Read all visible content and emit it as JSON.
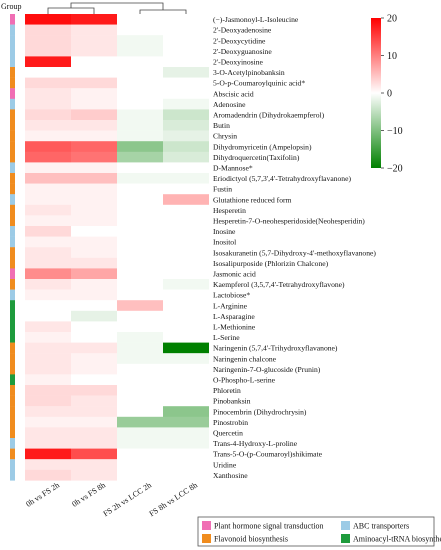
{
  "chart_data": {
    "type": "heatmap",
    "group_title": "Group",
    "columns": [
      "0h vs FS 2h",
      "0h vs FS 8h",
      "FS 2h vs LCC 2h",
      "FS 8h vs LCC 8h"
    ],
    "colorbar": {
      "min": -20,
      "max": 20,
      "ticks": [
        20,
        10,
        0,
        -10,
        -20
      ],
      "colors": [
        "#008000",
        "#ffffff",
        "#ff0000"
      ]
    },
    "legend": [
      {
        "name": "Plant hormone signal transduction",
        "color": "#f06eb4"
      },
      {
        "name": "ABC transporters",
        "color": "#9ccbe6"
      },
      {
        "name": "Flavonoid biosynthesis",
        "color": "#f08c1e"
      },
      {
        "name": "Aminoacyl-tRNA biosynthesis",
        "color": "#1e9b3c"
      }
    ],
    "rows": [
      {
        "label": "(−)-Jasmonoyl-L-Isoleucine",
        "group": 0,
        "values": [
          19,
          18,
          0,
          0
        ]
      },
      {
        "label": "2'-Deoxyadenosine",
        "group": 1,
        "values": [
          3,
          2,
          0,
          0
        ]
      },
      {
        "label": "2'-Deoxycytidine",
        "group": 1,
        "values": [
          3,
          2,
          -1,
          0
        ]
      },
      {
        "label": "2'-Deoxyguanosine",
        "group": 1,
        "values": [
          3,
          2,
          -1,
          0
        ]
      },
      {
        "label": "2'-Deoxyinosine",
        "group": 1,
        "values": [
          18,
          0,
          0,
          0
        ]
      },
      {
        "label": "3-O-Acetylpinobanksin",
        "group": 2,
        "values": [
          0,
          0,
          0,
          -2
        ]
      },
      {
        "label": "5-O-p-Coumaroylquinic acid*",
        "group": 2,
        "values": [
          3,
          3,
          0,
          0
        ]
      },
      {
        "label": "Abscisic  acid",
        "group": 0,
        "values": [
          2,
          1,
          0,
          0
        ]
      },
      {
        "label": "Adenosine",
        "group": 1,
        "values": [
          2,
          1,
          0,
          -1
        ]
      },
      {
        "label": "Aromadendrin (Dihydrokaempferol)",
        "group": 2,
        "values": [
          3,
          4,
          -1,
          -4
        ]
      },
      {
        "label": "Butin",
        "group": 2,
        "values": [
          2,
          2,
          -1,
          -3
        ]
      },
      {
        "label": "Chrysin",
        "group": 2,
        "values": [
          1,
          1,
          -1,
          -2
        ]
      },
      {
        "label": "Dihydromyricetin (Ampelopsin)",
        "group": 2,
        "values": [
          13,
          12,
          -9,
          -4
        ]
      },
      {
        "label": "Dihydroquercetin(Taxifolin)",
        "group": 2,
        "values": [
          12,
          11,
          -7,
          -3
        ]
      },
      {
        "label": "D-Mannose*",
        "group": 1,
        "values": [
          1,
          1,
          0,
          0
        ]
      },
      {
        "label": "Eriodictyol (5,7,3',4'-Tetrahydroxyflavanone)",
        "group": 2,
        "values": [
          5,
          5,
          -1,
          -1
        ]
      },
      {
        "label": "Fustin",
        "group": 2,
        "values": [
          1,
          1,
          0,
          0
        ]
      },
      {
        "label": "Glutathione reduced form",
        "group": 1,
        "values": [
          1,
          1,
          0,
          6
        ]
      },
      {
        "label": "Hesperetin",
        "group": 2,
        "values": [
          2,
          1,
          0,
          0
        ]
      },
      {
        "label": "Hesperetin-7-O-neohesperidoside(Neohesperidin)",
        "group": 2,
        "values": [
          1,
          1,
          0,
          0
        ]
      },
      {
        "label": "Inosine",
        "group": 1,
        "values": [
          3,
          0,
          0,
          0
        ]
      },
      {
        "label": "Inositol",
        "group": 1,
        "values": [
          1,
          1,
          0,
          0
        ]
      },
      {
        "label": "Isosakuranetin (5,7-Dihydroxy-4'-methoxyflavanone)",
        "group": 2,
        "values": [
          2,
          1,
          0,
          0
        ]
      },
      {
        "label": "Isosalipurposide (Phlorizin Chalcone)",
        "group": 2,
        "values": [
          2,
          2,
          0,
          0
        ]
      },
      {
        "label": "Jasmonic acid",
        "group": 0,
        "values": [
          9,
          7,
          0,
          0
        ]
      },
      {
        "label": "Kaempferol (3,5,7,4'-Tetrahydroxyflavone)",
        "group": 2,
        "values": [
          2,
          1,
          0,
          -1
        ]
      },
      {
        "label": "Lactobiose*",
        "group": 1,
        "values": [
          1,
          1,
          0,
          0
        ]
      },
      {
        "label": "L-Arginine",
        "group": 3,
        "values": [
          0,
          0,
          5,
          0
        ]
      },
      {
        "label": "L-Asparagine",
        "group": 3,
        "values": [
          0,
          -2,
          0,
          0
        ]
      },
      {
        "label": "L-Methionine",
        "group": 3,
        "values": [
          2,
          0,
          0,
          0
        ]
      },
      {
        "label": "L-Serine",
        "group": 3,
        "values": [
          1,
          0,
          -1,
          0
        ]
      },
      {
        "label": "Naringenin (5,7,4'-Trihydroxyflavanone)",
        "group": 2,
        "values": [
          2,
          2,
          -1,
          -20
        ]
      },
      {
        "label": "Naringenin chalcone",
        "group": 2,
        "values": [
          2,
          1,
          -1,
          -1
        ]
      },
      {
        "label": "Naringenin-7-O-glucoside (Prunin)",
        "group": 2,
        "values": [
          2,
          1,
          0,
          0
        ]
      },
      {
        "label": "O-Phospho-L-serine",
        "group": 3,
        "values": [
          1,
          0,
          0,
          0
        ]
      },
      {
        "label": "Phloretin",
        "group": 2,
        "values": [
          3,
          3,
          0,
          0
        ]
      },
      {
        "label": "Pinobanksin",
        "group": 2,
        "values": [
          3,
          2,
          0,
          0
        ]
      },
      {
        "label": "Pinocembrin (Dihydrochrysin)",
        "group": 2,
        "values": [
          2,
          2,
          0,
          -9
        ]
      },
      {
        "label": "Pinostrobin",
        "group": 2,
        "values": [
          1,
          1,
          -8,
          -8
        ]
      },
      {
        "label": "Quercetin",
        "group": 2,
        "values": [
          2,
          2,
          -1,
          -1
        ]
      },
      {
        "label": "Trans-4-Hydroxy-L-proline",
        "group": 1,
        "values": [
          2,
          2,
          -1,
          -1
        ]
      },
      {
        "label": "Trans-5-O-(p-Coumaroyl)shikimate",
        "group": 2,
        "values": [
          18,
          14,
          0,
          0
        ]
      },
      {
        "label": "Uridine",
        "group": 1,
        "values": [
          2,
          2,
          0,
          0
        ]
      },
      {
        "label": "Xanthosine",
        "group": 1,
        "values": [
          3,
          2,
          0,
          0
        ]
      }
    ]
  }
}
